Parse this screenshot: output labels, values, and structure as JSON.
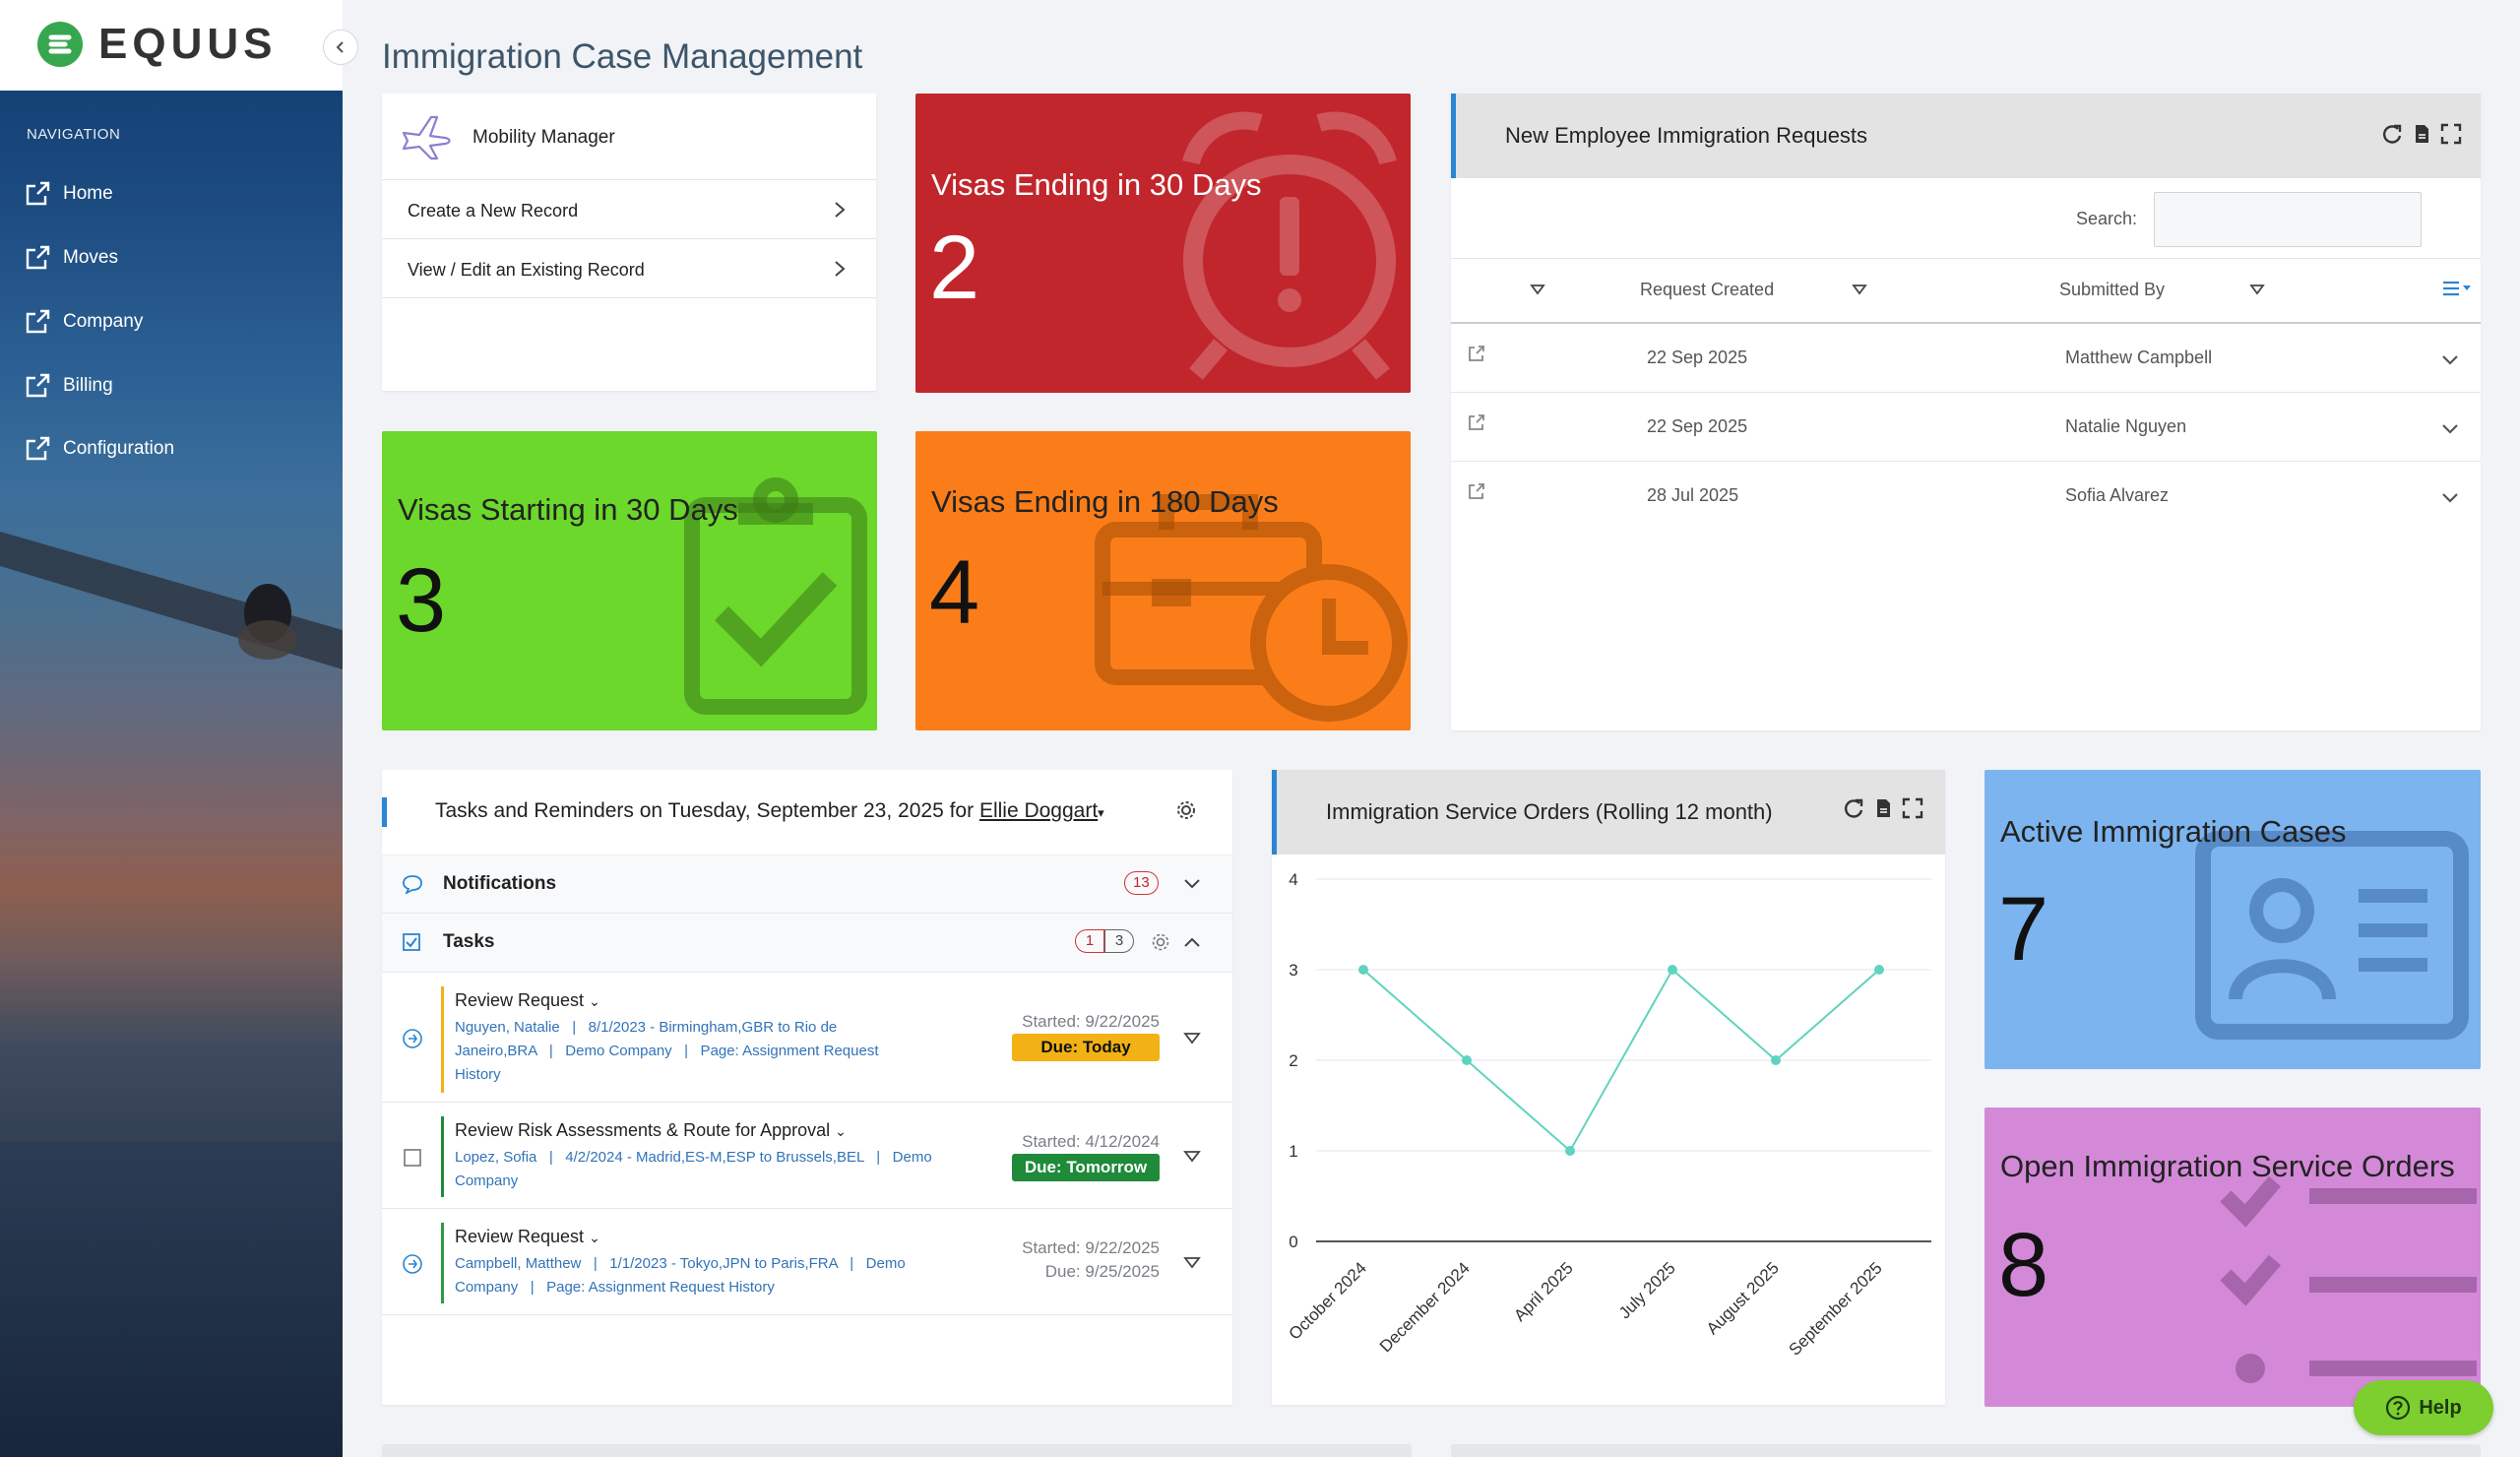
{
  "brand": {
    "logo_text": "EQUUS",
    "accent": "#37a74f"
  },
  "sidebar": {
    "heading": "NAVIGATION",
    "items": [
      {
        "label": "Home"
      },
      {
        "label": "Moves"
      },
      {
        "label": "Company"
      },
      {
        "label": "Billing"
      },
      {
        "label": "Configuration"
      }
    ]
  },
  "page": {
    "title": "Immigration Case Management"
  },
  "mobility": {
    "title": "Mobility Manager",
    "links": [
      {
        "label": "Create a New Record"
      },
      {
        "label": "View / Edit an Existing Record"
      }
    ]
  },
  "tiles": {
    "visas_ending_30": {
      "label": "Visas Ending in 30 Days",
      "value": "2",
      "color": "#c1262c"
    },
    "visas_starting_30": {
      "label": "Visas Starting in 30 Days",
      "value": "3",
      "color": "#6bd82b"
    },
    "visas_ending_180": {
      "label": "Visas Ending in 180 Days",
      "value": "4",
      "color": "#fb7d19"
    },
    "active_cases": {
      "label": "Active Immigration Cases",
      "value": "7",
      "color": "#7cb4ef"
    },
    "open_orders": {
      "label": "Open Immigration Service Orders",
      "value": "8",
      "color": "#d389d8"
    }
  },
  "requests": {
    "title": "New Employee Immigration Requests",
    "search_label": "Search:",
    "columns": [
      "Request Created",
      "Submitted By"
    ],
    "rows": [
      {
        "date": "22 Sep 2025",
        "by": "Matthew Campbell"
      },
      {
        "date": "22 Sep 2025",
        "by": "Natalie Nguyen"
      },
      {
        "date": "28 Jul 2025",
        "by": "Sofia Alvarez"
      }
    ]
  },
  "tasks": {
    "title_prefix": "Tasks and Reminders on Tuesday, September 23, 2025 for",
    "user": "Ellie Doggart",
    "notifications_label": "Notifications",
    "notifications_count": "13",
    "tasks_label": "Tasks",
    "tasks_count_a": "1",
    "tasks_count_b": "3",
    "items": [
      {
        "title": "Review Request",
        "line1": "Nguyen, Natalie   |   8/1/2023 - Birmingham,GBR to Rio de",
        "line2": "Janeiro,BRA   |   Demo Company   |   Page: Assignment Request",
        "line3": "History",
        "started": "Started: 9/22/2025",
        "due": "Due: Today",
        "due_color": "#f2b215"
      },
      {
        "title": "Review Risk Assessments & Route for Approval",
        "line1": "Lopez, Sofia   |   4/2/2024 - Madrid,ES-M,ESP to Brussels,BEL   |   Demo",
        "line2": "Company",
        "line3": "",
        "started": "Started: 4/12/2024",
        "due": "Due: Tomorrow",
        "due_color": "#1f8a3a"
      },
      {
        "title": "Review Request",
        "line1": "Campbell, Matthew   |   1/1/2023 - Tokyo,JPN to Paris,FRA   |   Demo",
        "line2": "Company   |   Page: Assignment Request History",
        "line3": "",
        "started": "Started: 9/22/2025",
        "due": "Due: 9/25/2025",
        "due_color": ""
      }
    ]
  },
  "chart_panel": {
    "title": "Immigration Service Orders (Rolling 12 month)"
  },
  "chart_data": {
    "type": "line",
    "categories": [
      "October 2024",
      "December 2024",
      "April 2025",
      "July 2025",
      "August 2025",
      "September 2025"
    ],
    "values": [
      3,
      2,
      1,
      3,
      2,
      3
    ],
    "ylim": [
      0,
      4
    ],
    "yticks": [
      "0",
      "1",
      "2",
      "3",
      "4"
    ],
    "color": "#5fd3bf",
    "grid": true
  },
  "help": {
    "label": "Help"
  }
}
